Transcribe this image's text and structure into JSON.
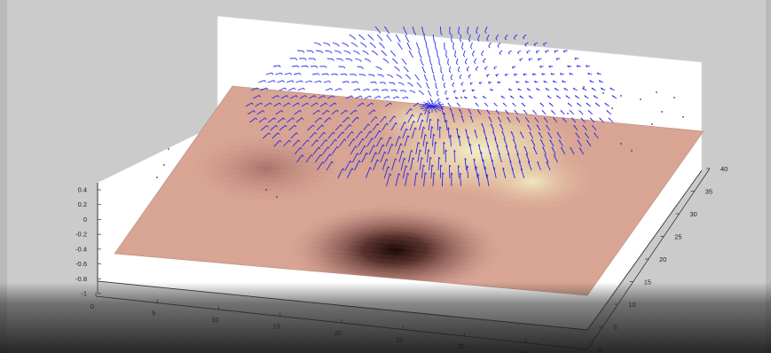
{
  "chart_data": {
    "type": "surface-3d",
    "surface": "3D shaded surface with a peak and a pit, quiver arrows above",
    "xlim": [
      0,
      40
    ],
    "ylim": [
      0,
      40
    ],
    "zlim": [
      -1,
      0.4
    ],
    "x_ticks": [
      "0",
      "5",
      "10",
      "15",
      "20",
      "25",
      "30",
      "35"
    ],
    "y_ticks": [
      "0",
      "5",
      "10",
      "15",
      "20",
      "25",
      "30",
      "35",
      "40"
    ],
    "z_ticks": [
      "0.4",
      "0.2",
      "0",
      "-0.2",
      "-0.4",
      "-0.6",
      "-0.8",
      "-1"
    ],
    "grid": false,
    "colors": {
      "surface_base": "#d9a594",
      "surface_high": "#f2e7bd",
      "surface_low": "#1e0a08",
      "arrows": "#2a2ae6",
      "axes_fill": "#ffffff",
      "background": "#cbcbcb"
    }
  }
}
